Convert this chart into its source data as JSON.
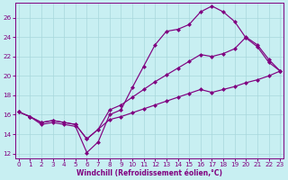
{
  "xlabel": "Windchill (Refroidissement éolien,°C)",
  "bg_color": "#c8eff2",
  "line_color": "#800080",
  "grid_color": "#a8d8dc",
  "xlim_min": -0.3,
  "xlim_max": 23.3,
  "ylim_min": 11.5,
  "ylim_max": 27.5,
  "xticks": [
    0,
    1,
    2,
    3,
    4,
    5,
    6,
    7,
    8,
    9,
    10,
    11,
    12,
    13,
    14,
    15,
    16,
    17,
    18,
    19,
    20,
    21,
    22,
    23
  ],
  "yticks": [
    12,
    14,
    16,
    18,
    20,
    22,
    24,
    26
  ],
  "line1_x": [
    0,
    1,
    2,
    3,
    4,
    5,
    6,
    7,
    8,
    9,
    10,
    11,
    12,
    13,
    14,
    15,
    16,
    17,
    18,
    19,
    20,
    21,
    22,
    23
  ],
  "line1_y": [
    16.3,
    15.8,
    15.0,
    15.2,
    15.0,
    14.8,
    12.1,
    13.2,
    16.0,
    16.5,
    18.8,
    21.0,
    23.2,
    24.6,
    24.8,
    25.3,
    26.6,
    27.2,
    26.6,
    25.6,
    23.9,
    23.0,
    21.4,
    20.5
  ],
  "line2_x": [
    0,
    1,
    2,
    3,
    4,
    5,
    6,
    7,
    8,
    9,
    10,
    11,
    12,
    13,
    14,
    15,
    16,
    17,
    18,
    19,
    20,
    21,
    22,
    23
  ],
  "line2_y": [
    16.3,
    15.8,
    15.2,
    15.4,
    15.2,
    15.0,
    13.5,
    14.5,
    16.5,
    17.0,
    17.8,
    18.6,
    19.4,
    20.1,
    20.8,
    21.5,
    22.2,
    22.0,
    22.3,
    22.8,
    24.0,
    23.2,
    21.7,
    20.5
  ],
  "line3_x": [
    0,
    1,
    2,
    3,
    4,
    5,
    6,
    7,
    8,
    9,
    10,
    11,
    12,
    13,
    14,
    15,
    16,
    17,
    18,
    19,
    20,
    21,
    22,
    23
  ],
  "line3_y": [
    16.3,
    15.8,
    15.2,
    15.4,
    15.2,
    15.0,
    13.5,
    14.5,
    15.5,
    15.8,
    16.2,
    16.6,
    17.0,
    17.4,
    17.8,
    18.2,
    18.6,
    18.3,
    18.6,
    18.9,
    19.3,
    19.6,
    20.0,
    20.5
  ]
}
